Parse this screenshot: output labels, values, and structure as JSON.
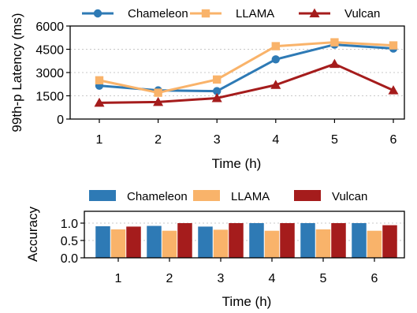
{
  "chart_data": [
    {
      "type": "line",
      "categories": [
        "1",
        "2",
        "3",
        "4",
        "5",
        "6"
      ],
      "xlabel": "Time (h)",
      "ylabel": "99th-p Latency (ms)",
      "ylim": [
        0,
        6000
      ],
      "yticks": [
        "0",
        "1500",
        "3000",
        "4500",
        "6000"
      ],
      "grid": "horizontal dotted",
      "legend_position": "top",
      "series": [
        {
          "name": "Chameleon",
          "color": "#2e7ab5",
          "marker": "circle",
          "values": [
            2150,
            1850,
            1800,
            3850,
            4800,
            4550
          ]
        },
        {
          "name": "LLAMA",
          "color": "#f9b36a",
          "marker": "square",
          "values": [
            2500,
            1700,
            2550,
            4700,
            4950,
            4750
          ]
        },
        {
          "name": "Vulcan",
          "color": "#a51c1c",
          "marker": "triangle",
          "values": [
            1050,
            1100,
            1350,
            2200,
            3550,
            1850
          ]
        }
      ]
    },
    {
      "type": "bar",
      "categories": [
        "1",
        "2",
        "3",
        "4",
        "5",
        "6"
      ],
      "xlabel": "Time (h)",
      "ylabel": "Accuracy",
      "ylim": [
        0,
        1.0
      ],
      "yticks": [
        "0.0",
        "0.5",
        "1.0"
      ],
      "grid": "horizontal dotted",
      "legend_position": "top",
      "series": [
        {
          "name": "Chameleon",
          "color": "#2e7ab5",
          "values": [
            0.91,
            0.92,
            0.9,
            1.0,
            1.0,
            1.0
          ]
        },
        {
          "name": "LLAMA",
          "color": "#f9b36a",
          "values": [
            0.82,
            0.78,
            0.81,
            0.78,
            0.82,
            0.78
          ]
        },
        {
          "name": "Vulcan",
          "color": "#a51c1c",
          "values": [
            0.9,
            1.0,
            1.0,
            1.0,
            1.0,
            0.94
          ]
        }
      ]
    }
  ]
}
